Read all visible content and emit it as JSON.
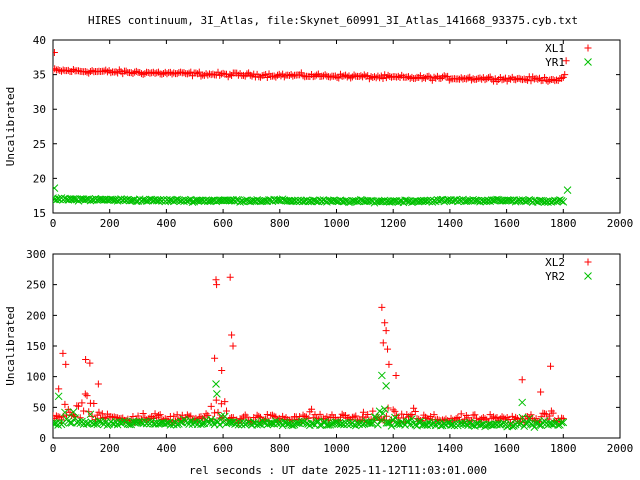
{
  "title": "HIRES continuum, 3I_Atlas, file:Skynet_60991_3I_Atlas_141668_93375.cyb.txt",
  "xlabel": "rel seconds : UT date 2025-11-12T11:03:01.000",
  "colors": {
    "red": "#ff0000",
    "green": "#00c000"
  },
  "chart_data": [
    {
      "type": "scatter",
      "ylabel": "Uncalibrated",
      "xlim": [
        0,
        2000
      ],
      "ylim": [
        15,
        40
      ],
      "xticks": [
        0,
        200,
        400,
        600,
        800,
        1000,
        1200,
        1400,
        1600,
        1800,
        2000
      ],
      "yticks": [
        15,
        20,
        25,
        30,
        35,
        40
      ],
      "legend": "top-right",
      "series": [
        {
          "name": "XL1",
          "marker": "plus",
          "color": "#ff0000",
          "trend": [
            [
              0,
              35.6
            ],
            [
              200,
              35.4
            ],
            [
              400,
              35.2
            ],
            [
              600,
              35.0
            ],
            [
              800,
              34.9
            ],
            [
              1000,
              34.8
            ],
            [
              1200,
              34.6
            ],
            [
              1400,
              34.5
            ],
            [
              1600,
              34.4
            ],
            [
              1800,
              34.3
            ]
          ],
          "scatter": 0.25,
          "extra": [
            [
              5,
              38.2
            ],
            [
              1810,
              37.0
            ],
            [
              1805,
              35.0
            ]
          ]
        },
        {
          "name": "YR1",
          "marker": "x",
          "color": "#00c000",
          "trend": [
            [
              0,
              17.0
            ],
            [
              200,
              16.9
            ],
            [
              400,
              16.8
            ],
            [
              600,
              16.8
            ],
            [
              800,
              16.8
            ],
            [
              1000,
              16.7
            ],
            [
              1200,
              16.7
            ],
            [
              1400,
              16.8
            ],
            [
              1600,
              16.8
            ],
            [
              1800,
              16.7
            ]
          ],
          "scatter": 0.15,
          "extra": [
            [
              5,
              18.6
            ],
            [
              1815,
              18.3
            ]
          ]
        }
      ]
    },
    {
      "type": "scatter",
      "ylabel": "Uncalibrated",
      "xlabel": "rel seconds : UT date 2025-11-12T11:03:01.000",
      "xlim": [
        0,
        2000
      ],
      "ylim": [
        0,
        300
      ],
      "xticks": [
        0,
        200,
        400,
        600,
        800,
        1000,
        1200,
        1400,
        1600,
        1800,
        2000
      ],
      "yticks": [
        0,
        50,
        100,
        150,
        200,
        250,
        300
      ],
      "legend": "top-right",
      "series": [
        {
          "name": "XL2",
          "marker": "plus",
          "color": "#ff0000",
          "trend": [
            [
              0,
              33
            ],
            [
              1800,
              30
            ]
          ],
          "scatter": 6,
          "bursts": [
            [
              40,
              70,
              35
            ],
            [
              120,
              70,
              40
            ],
            [
              450,
              40,
              15
            ],
            [
              580,
              55,
              45
            ],
            [
              915,
              35,
              15
            ],
            [
              1170,
              70,
              45
            ],
            [
              1280,
              45,
              25
            ],
            [
              1670,
              40,
              20
            ],
            [
              1740,
              45,
              20
            ]
          ],
          "extra": [
            [
              35,
              138
            ],
            [
              45,
              120
            ],
            [
              115,
              128
            ],
            [
              130,
              122
            ],
            [
              575,
              258
            ],
            [
              577,
              250
            ],
            [
              625,
              262
            ],
            [
              630,
              168
            ],
            [
              635,
              150
            ],
            [
              570,
              130
            ],
            [
              595,
              110
            ],
            [
              1160,
              213
            ],
            [
              1170,
              188
            ],
            [
              1175,
              175
            ],
            [
              1165,
              155
            ],
            [
              1180,
              145
            ],
            [
              1185,
              120
            ],
            [
              1210,
              102
            ],
            [
              1655,
              95
            ],
            [
              1755,
              117
            ],
            [
              1720,
              75
            ],
            [
              20,
              80
            ],
            [
              160,
              88
            ],
            [
              1095,
              42
            ]
          ]
        },
        {
          "name": "YR2",
          "marker": "x",
          "color": "#00c000",
          "trend": [
            [
              0,
              25
            ],
            [
              1800,
              22
            ]
          ],
          "scatter": 3,
          "bursts": [
            [
              40,
              60,
              25
            ],
            [
              120,
              60,
              20
            ],
            [
              450,
              40,
              8
            ],
            [
              580,
              50,
              30
            ],
            [
              1170,
              60,
              30
            ],
            [
              1280,
              40,
              12
            ],
            [
              1670,
              40,
              15
            ],
            [
              1740,
              40,
              10
            ]
          ],
          "extra": [
            [
              575,
              88
            ],
            [
              578,
              72
            ],
            [
              1160,
              102
            ],
            [
              1175,
              85
            ],
            [
              20,
              68
            ],
            [
              1655,
              58
            ]
          ]
        }
      ]
    }
  ]
}
